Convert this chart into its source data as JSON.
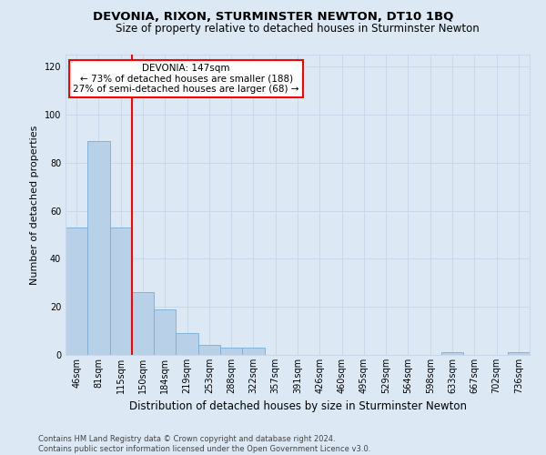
{
  "title": "DEVONIA, RIXON, STURMINSTER NEWTON, DT10 1BQ",
  "subtitle": "Size of property relative to detached houses in Sturminster Newton",
  "xlabel": "Distribution of detached houses by size in Sturminster Newton",
  "ylabel": "Number of detached properties",
  "bar_labels": [
    "46sqm",
    "81sqm",
    "115sqm",
    "150sqm",
    "184sqm",
    "219sqm",
    "253sqm",
    "288sqm",
    "322sqm",
    "357sqm",
    "391sqm",
    "426sqm",
    "460sqm",
    "495sqm",
    "529sqm",
    "564sqm",
    "598sqm",
    "633sqm",
    "667sqm",
    "702sqm",
    "736sqm"
  ],
  "bar_values": [
    53,
    89,
    53,
    26,
    19,
    9,
    4,
    3,
    3,
    0,
    0,
    0,
    0,
    0,
    0,
    0,
    0,
    1,
    0,
    0,
    1
  ],
  "bar_color": "#b8d0e8",
  "bar_edgecolor": "#7aadd4",
  "grid_color": "#c8d8ea",
  "background_color": "#dce9f5",
  "vline_x": 2.5,
  "vline_color": "red",
  "annotation_text": "DEVONIA: 147sqm\n← 73% of detached houses are smaller (188)\n27% of semi-detached houses are larger (68) →",
  "annotation_box_facecolor": "white",
  "annotation_box_edgecolor": "red",
  "ylim": [
    0,
    125
  ],
  "yticks": [
    0,
    20,
    40,
    60,
    80,
    100,
    120
  ],
  "footer": "Contains HM Land Registry data © Crown copyright and database right 2024.\nContains public sector information licensed under the Open Government Licence v3.0.",
  "title_fontsize": 9.5,
  "subtitle_fontsize": 8.5,
  "xlabel_fontsize": 8.5,
  "ylabel_fontsize": 8,
  "tick_fontsize": 7,
  "annot_fontsize": 7.5,
  "footer_fontsize": 6
}
